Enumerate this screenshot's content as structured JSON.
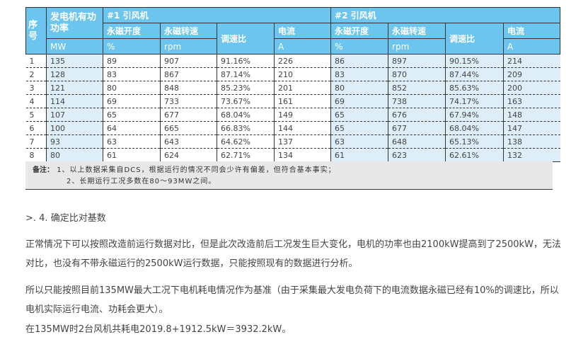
{
  "table": {
    "h_seq": "序号",
    "h_power": "发电机有功功率",
    "h_fan1": "#1 引风机",
    "h_fan2": "#2 引风机",
    "sub": [
      "永磁开度",
      "永磁转速",
      "调速比",
      "电流"
    ],
    "unit_power": "MW",
    "units": [
      "%",
      "rpm",
      "A"
    ],
    "rows": [
      [
        "1",
        "135",
        "89",
        "907",
        "91.16%",
        "226",
        "86",
        "897",
        "90.15%",
        "214"
      ],
      [
        "2",
        "128",
        "83",
        "867",
        "87.14%",
        "210",
        "83",
        "870",
        "87.44%",
        "209"
      ],
      [
        "3",
        "121",
        "80",
        "848",
        "85.23%",
        "201",
        "80",
        "852",
        "85.63%",
        "200"
      ],
      [
        "4",
        "114",
        "69",
        "733",
        "73.67%",
        "161",
        "69",
        "738",
        "74.17%",
        "163"
      ],
      [
        "5",
        "107",
        "65",
        "677",
        "68.04%",
        "149",
        "65",
        "676",
        "67.94%",
        "148"
      ],
      [
        "6",
        "100",
        "64",
        "665",
        "66.83%",
        "144",
        "65",
        "677",
        "68.04%",
        "147"
      ],
      [
        "7",
        "93",
        "63",
        "643",
        "64.62%",
        "137",
        "63",
        "648",
        "65.13%",
        "138"
      ],
      [
        "8",
        "80",
        "61",
        "624",
        "62.71%",
        "134",
        "61",
        "623",
        "62.61%",
        "132"
      ]
    ]
  },
  "notes": {
    "label": "备注：",
    "line1": "1、以上数据采集自DCS，根据运行的情况不同会少许有偏差，但符合基本事实；",
    "line2": "2、长期运行工况多数在80～93MW之间。"
  },
  "section": ">. 4. 确定比对基数",
  "p1": "正常情况下可以按照改造前运行数据对比，但是此次改造前后工况发生巨大变化，电机的功率也由2100kW提高到了2500kW，无法对比，也没有不带永磁运行的2500kW运行数据，只能按照现有的数据进行分析。",
  "p2": "所以只能按照目前135MW最大工况下电机耗电情况作为基准（由于采集最大发电负荷下的电流数据永磁已经有10%的调速比，所以电机实际运行电流、功耗会更大）。",
  "p3": "在135MW时2台风机共耗电2019.8+1912.5kW＝3932.2kW。"
}
